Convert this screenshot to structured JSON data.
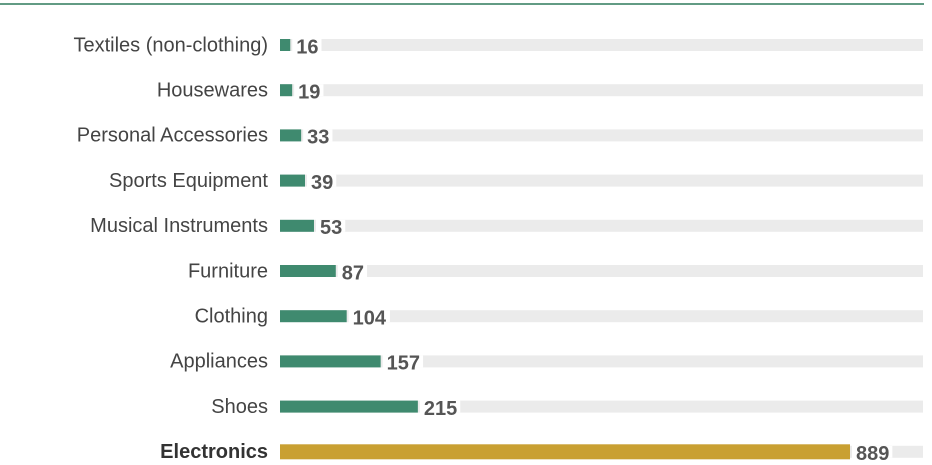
{
  "chart_data": {
    "type": "bar",
    "orientation": "horizontal",
    "categories": [
      "Textiles (non-clothing)",
      "Housewares",
      "Personal Accessories",
      "Sports Equipment",
      "Musical Instruments",
      "Furniture",
      "Clothing",
      "Appliances",
      "Shoes",
      "Electronics"
    ],
    "values": [
      16,
      19,
      33,
      39,
      53,
      87,
      104,
      157,
      215,
      889
    ],
    "color": "#3f8a6f",
    "highlight_color": "#c9a032",
    "highlight_index": 9,
    "track_color": "#ebebeb"
  }
}
